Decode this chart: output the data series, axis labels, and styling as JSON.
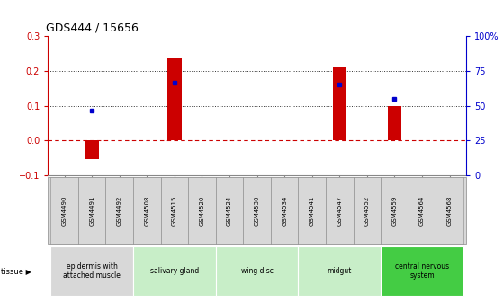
{
  "title": "GDS444 / 15656",
  "samples": [
    "GSM4490",
    "GSM4491",
    "GSM4492",
    "GSM4508",
    "GSM4515",
    "GSM4520",
    "GSM4524",
    "GSM4530",
    "GSM4534",
    "GSM4541",
    "GSM4547",
    "GSM4552",
    "GSM4559",
    "GSM4564",
    "GSM4568"
  ],
  "log_ratio": [
    0,
    -0.055,
    0,
    0,
    0.235,
    0,
    0,
    0,
    0,
    0,
    0.21,
    0,
    0.1,
    0,
    0
  ],
  "percentile": [
    null,
    0.085,
    null,
    null,
    0.165,
    null,
    null,
    null,
    null,
    null,
    0.16,
    null,
    0.12,
    null,
    null
  ],
  "tissue_groups": [
    {
      "label": "epidermis with\nattached muscle",
      "start": 0,
      "end": 3,
      "color": "#d8d8d8"
    },
    {
      "label": "salivary gland",
      "start": 3,
      "end": 6,
      "color": "#c8eec8"
    },
    {
      "label": "wing disc",
      "start": 6,
      "end": 9,
      "color": "#c8eec8"
    },
    {
      "label": "midgut",
      "start": 9,
      "end": 12,
      "color": "#c8eec8"
    },
    {
      "label": "central nervous\nsystem",
      "start": 12,
      "end": 15,
      "color": "#44cc44"
    }
  ],
  "bar_color": "#cc0000",
  "dot_color": "#0000cc",
  "ylim_left": [
    -0.1,
    0.3
  ],
  "ylim_right": [
    0,
    100
  ],
  "yticks_left": [
    -0.1,
    0.0,
    0.1,
    0.2,
    0.3
  ],
  "yticks_right": [
    0,
    25,
    50,
    75,
    100
  ],
  "hline_color": "#cc0000",
  "dotted_line_color": "#333333",
  "dotted_lines": [
    0.1,
    0.2
  ],
  "background_color": "#ffffff",
  "plot_bg": "#ffffff",
  "gsm_bg": "#d8d8d8",
  "border_color": "#888888"
}
